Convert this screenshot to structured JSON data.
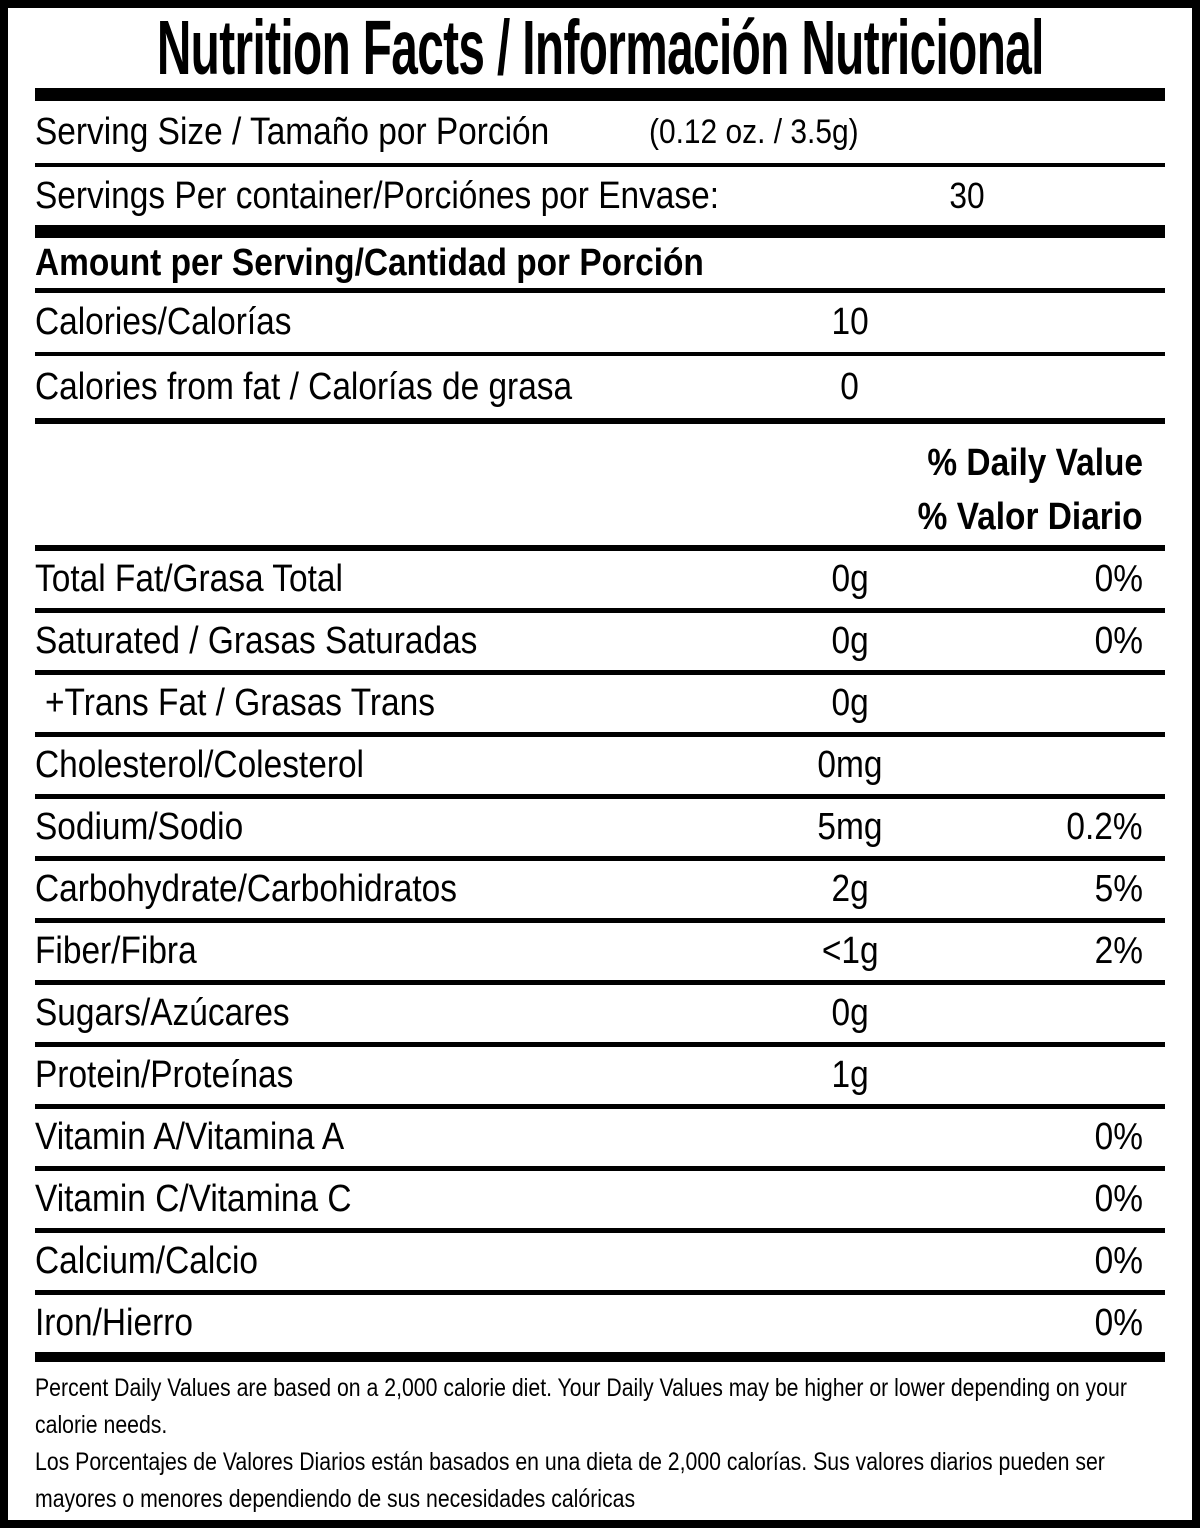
{
  "label": {
    "title": "Nutrition Facts / Información Nutricional",
    "serving_size": {
      "label": "Serving Size / Tamaño por Porción",
      "value": "(0.12 oz. / 3.5g)"
    },
    "servings_per_container": {
      "label": "Servings Per container/Porciónes por Envase:",
      "value": "30"
    },
    "amount_per_serving_header": "Amount per Serving/Cantidad por Porción",
    "calories": {
      "label": "Calories/Calorías",
      "value": "10"
    },
    "calories_from_fat": {
      "label": "Calories from fat / Calorías de grasa",
      "value": "0"
    },
    "daily_value_header_en": "% Daily Value",
    "daily_value_header_es": "% Valor Diario",
    "nutrients": [
      {
        "label": "Total Fat/Grasa Total",
        "amount": "0g",
        "dv": "0%"
      },
      {
        "label": "Saturated / Grasas Saturadas",
        "amount": "0g",
        "dv": "0%"
      },
      {
        "label": "+Trans Fat / Grasas Trans",
        "amount": "0g",
        "dv": ""
      },
      {
        "label": "Cholesterol/Colesterol",
        "amount": "0mg",
        "dv": ""
      },
      {
        "label": "Sodium/Sodio",
        "amount": "5mg",
        "dv": "0.2%"
      },
      {
        "label": "Carbohydrate/Carbohidratos",
        "amount": "2g",
        "dv": "5%"
      },
      {
        "label": "Fiber/Fibra",
        "amount": "<1g",
        "dv": "2%"
      },
      {
        "label": "Sugars/Azúcares",
        "amount": "0g",
        "dv": ""
      },
      {
        "label": "Protein/Proteínas",
        "amount": "1g",
        "dv": ""
      },
      {
        "label": "Vitamin A/Vitamina A",
        "amount": "",
        "dv": "0%"
      },
      {
        "label": "Vitamin C/Vitamina C",
        "amount": "",
        "dv": "0%"
      },
      {
        "label": "Calcium/Calcio",
        "amount": "",
        "dv": "0%"
      },
      {
        "label": "Iron/Hierro",
        "amount": "",
        "dv": "0%"
      }
    ],
    "footnote_en": "Percent Daily Values are based on a 2,000 calorie diet. Your Daily Values may be higher or lower depending on your calorie needs.",
    "footnote_es": "Los Porcentajes de Valores Diarios están basados en una dieta de 2,000 calorías. Sus valores diarios pueden ser mayores o menores dependiendo de sus necesidades calóricas",
    "colors": {
      "text": "#000000",
      "background": "#ffffff"
    }
  }
}
